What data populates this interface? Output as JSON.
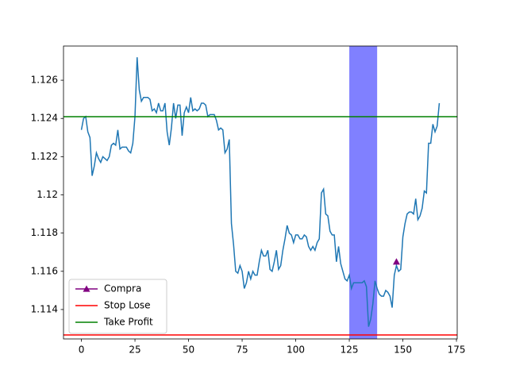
{
  "chart_data": {
    "type": "line",
    "color": "#1f77b4",
    "values": [
      1.1234,
      1.124,
      1.1241,
      1.1233,
      1.123,
      1.121,
      1.1215,
      1.1222,
      1.1219,
      1.1217,
      1.122,
      1.1219,
      1.1218,
      1.122,
      1.1226,
      1.1227,
      1.1226,
      1.1234,
      1.1224,
      1.1225,
      1.1225,
      1.1225,
      1.1223,
      1.1222,
      1.1227,
      1.1241,
      1.1272,
      1.1255,
      1.1249,
      1.1251,
      1.1251,
      1.1251,
      1.125,
      1.1244,
      1.1245,
      1.1243,
      1.1248,
      1.1244,
      1.1244,
      1.1248,
      1.1233,
      1.1226,
      1.1235,
      1.1248,
      1.124,
      1.1247,
      1.1247,
      1.1231,
      1.1243,
      1.1246,
      1.1243,
      1.1251,
      1.1244,
      1.1245,
      1.1244,
      1.1245,
      1.1248,
      1.1248,
      1.1247,
      1.1241,
      1.1242,
      1.1242,
      1.1242,
      1.1239,
      1.1234,
      1.1235,
      1.1234,
      1.1222,
      1.1224,
      1.1229,
      1.1185,
      1.1174,
      1.116,
      1.1159,
      1.1163,
      1.116,
      1.1151,
      1.1154,
      1.116,
      1.1156,
      1.116,
      1.1158,
      1.1158,
      1.1165,
      1.1171,
      1.1168,
      1.1168,
      1.1171,
      1.1161,
      1.116,
      1.1165,
      1.1171,
      1.1161,
      1.1163,
      1.1171,
      1.1177,
      1.1184,
      1.118,
      1.1179,
      1.1175,
      1.1179,
      1.1179,
      1.1177,
      1.1177,
      1.1179,
      1.1178,
      1.1173,
      1.1171,
      1.1173,
      1.1171,
      1.1175,
      1.1177,
      1.1201,
      1.1203,
      1.119,
      1.1189,
      1.1181,
      1.1179,
      1.1179,
      1.1165,
      1.1173,
      1.1164,
      1.116,
      1.1156,
      1.1155,
      1.1158,
      1.1151,
      1.1154,
      1.1154,
      1.1154,
      1.1154,
      1.1154,
      1.1155,
      1.1152,
      1.1131,
      1.1135,
      1.1143,
      1.1155,
      1.1151,
      1.1148,
      1.1147,
      1.1147,
      1.115,
      1.1149,
      1.1147,
      1.1141,
      1.1158,
      1.1163,
      1.116,
      1.1161,
      1.1178,
      1.1185,
      1.119,
      1.1191,
      1.1191,
      1.119,
      1.1198,
      1.1187,
      1.1189,
      1.1193,
      1.1202,
      1.1201,
      1.1227,
      1.1227,
      1.1237,
      1.1233,
      1.1236,
      1.1248
    ],
    "marker": {
      "name": "Compra",
      "x": 147,
      "y": 1.1165,
      "color": "purple"
    },
    "hlines": [
      {
        "name": "Stop Lose",
        "value": 1.11267,
        "color": "red"
      },
      {
        "name": "Take Profit",
        "value": 1.12409,
        "color": "green"
      }
    ],
    "span": {
      "x": [
        125,
        138
      ],
      "color": "#8080ff"
    },
    "xlim": [
      -8.35,
      175.35
    ],
    "ylim": [
      1.11246,
      1.12779
    ],
    "xticks": [
      0,
      25,
      50,
      75,
      100,
      125,
      150,
      175
    ],
    "yticks": [
      1.114,
      1.116,
      1.118,
      1.12,
      1.122,
      1.124,
      1.126
    ],
    "legend": "lower left"
  }
}
